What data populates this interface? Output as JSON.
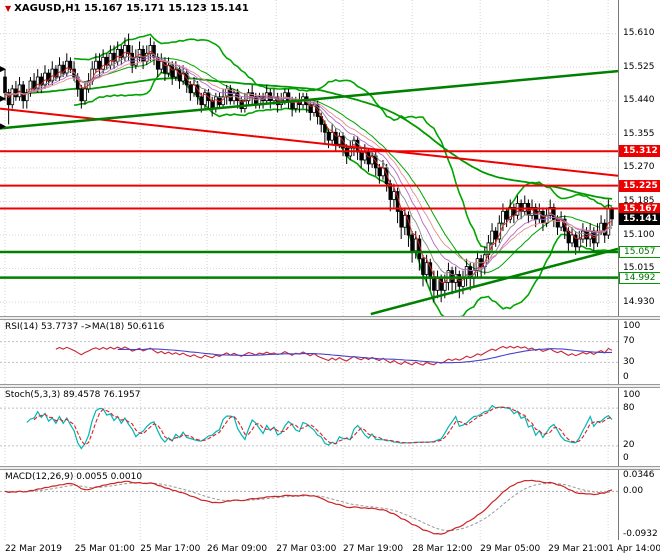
{
  "header": {
    "symbol": "XAGUSD,H1",
    "ohlc": "15.167 15.171 15.123 15.141"
  },
  "colors": {
    "background": "#ffffff",
    "grid": "#d4d4d4",
    "level_line": "#c0c0c0",
    "candle_up_fill": "#ffffff",
    "candle_down_fill": "#000000",
    "candle_border": "#000000",
    "bollinger": "#00a500",
    "ma_slow": "#009900",
    "ema_ribbon": [
      "#dd2222",
      "#888888",
      "#bb66cc",
      "#e09090"
    ],
    "hline_red": "#ee0000",
    "hline_green": "#008000",
    "rsi_line": "#cc2233",
    "rsi_ma": "#4444cc",
    "stoch_k": "#00b5b5",
    "stoch_d": "#dd2222",
    "macd_main": "#cc2222",
    "macd_signal": "#999999"
  },
  "chart_data": {
    "type": "candlestick",
    "symbol": "XAGUSD",
    "timeframe": "H1",
    "current_bar": {
      "open": 15.167,
      "high": 15.171,
      "low": 15.123,
      "close": 15.141
    },
    "price_range": [
      14.895,
      15.695
    ],
    "price_axis": {
      "gridlines": [
        15.61,
        15.525,
        15.44,
        15.355,
        15.27,
        15.185,
        15.1,
        15.015,
        14.93
      ]
    },
    "time_axis": {
      "labels": [
        {
          "t": "22 Mar 2019",
          "x": 0.008
        },
        {
          "t": "25 Mar 01:00",
          "x": 0.121
        },
        {
          "t": "25 Mar 17:00",
          "x": 0.227
        },
        {
          "t": "26 Mar 09:00",
          "x": 0.335
        },
        {
          "t": "27 Mar 03:00",
          "x": 0.447
        },
        {
          "t": "27 Mar 19:00",
          "x": 0.555
        },
        {
          "t": "28 Mar 12:00",
          "x": 0.667
        },
        {
          "t": "29 Mar 05:00",
          "x": 0.777
        },
        {
          "t": "29 Mar 21:00",
          "x": 0.887
        },
        {
          "t": "1 Apr 14:00",
          "x": 0.984
        }
      ]
    },
    "candles": [
      [
        15.5,
        15.52,
        15.44,
        15.46
      ],
      [
        15.46,
        15.47,
        15.38,
        15.43
      ],
      [
        15.43,
        15.48,
        15.42,
        15.47
      ],
      [
        15.47,
        15.49,
        15.44,
        15.45
      ],
      [
        15.45,
        15.5,
        15.44,
        15.48
      ],
      [
        15.48,
        15.49,
        15.42,
        15.44
      ],
      [
        15.44,
        15.47,
        15.42,
        15.46
      ],
      [
        15.46,
        15.5,
        15.45,
        15.49
      ],
      [
        15.49,
        15.51,
        15.46,
        15.47
      ],
      [
        15.47,
        15.52,
        15.46,
        15.5
      ],
      [
        15.5,
        15.51,
        15.46,
        15.48
      ],
      [
        15.48,
        15.53,
        15.47,
        15.51
      ],
      [
        15.51,
        15.52,
        15.48,
        15.49
      ],
      [
        15.49,
        15.54,
        15.48,
        15.52
      ],
      [
        15.52,
        15.53,
        15.49,
        15.5
      ],
      [
        15.5,
        15.55,
        15.49,
        15.53
      ],
      [
        15.53,
        15.54,
        15.5,
        15.51
      ],
      [
        15.51,
        15.56,
        15.5,
        15.54
      ],
      [
        15.54,
        15.55,
        15.51,
        15.52
      ],
      [
        15.52,
        15.54,
        15.49,
        15.5
      ],
      [
        15.5,
        15.51,
        15.45,
        15.47
      ],
      [
        15.47,
        15.48,
        15.42,
        15.44
      ],
      [
        15.44,
        15.49,
        15.43,
        15.47
      ],
      [
        15.47,
        15.51,
        15.46,
        15.49
      ],
      [
        15.49,
        15.54,
        15.48,
        15.52
      ],
      [
        15.52,
        15.56,
        15.51,
        15.54
      ],
      [
        15.54,
        15.56,
        15.5,
        15.52
      ],
      [
        15.52,
        15.57,
        15.51,
        15.55
      ],
      [
        15.55,
        15.56,
        15.52,
        15.53
      ],
      [
        15.53,
        15.58,
        15.52,
        15.56
      ],
      [
        15.56,
        15.58,
        15.52,
        15.54
      ],
      [
        15.54,
        15.59,
        15.53,
        15.57
      ],
      [
        15.57,
        15.58,
        15.53,
        15.55
      ],
      [
        15.55,
        15.6,
        15.54,
        15.58
      ],
      [
        15.58,
        15.61,
        15.54,
        15.56
      ],
      [
        15.56,
        15.58,
        15.51,
        15.53
      ],
      [
        15.53,
        15.57,
        15.52,
        15.55
      ],
      [
        15.55,
        15.59,
        15.54,
        15.57
      ],
      [
        15.57,
        15.58,
        15.52,
        15.54
      ],
      [
        15.54,
        15.58,
        15.53,
        15.56
      ],
      [
        15.56,
        15.6,
        15.54,
        15.58
      ],
      [
        15.58,
        15.59,
        15.53,
        15.55
      ],
      [
        15.55,
        15.56,
        15.5,
        15.52
      ],
      [
        15.52,
        15.56,
        15.51,
        15.54
      ],
      [
        15.54,
        15.55,
        15.49,
        15.51
      ],
      [
        15.51,
        15.55,
        15.5,
        15.53
      ],
      [
        15.53,
        15.54,
        15.48,
        15.5
      ],
      [
        15.5,
        15.54,
        15.49,
        15.52
      ],
      [
        15.52,
        15.53,
        15.47,
        15.49
      ],
      [
        15.49,
        15.53,
        15.48,
        15.51
      ],
      [
        15.51,
        15.52,
        15.46,
        15.48
      ],
      [
        15.48,
        15.49,
        15.44,
        15.46
      ],
      [
        15.46,
        15.5,
        15.45,
        15.48
      ],
      [
        15.48,
        15.49,
        15.43,
        15.45
      ],
      [
        15.45,
        15.46,
        15.41,
        15.43
      ],
      [
        15.43,
        15.47,
        15.42,
        15.46
      ],
      [
        15.46,
        15.47,
        15.42,
        15.44
      ],
      [
        15.44,
        15.45,
        15.4,
        15.42
      ],
      [
        15.42,
        15.46,
        15.41,
        15.45
      ],
      [
        15.45,
        15.46,
        15.42,
        15.43
      ],
      [
        15.43,
        15.47,
        15.42,
        15.45
      ],
      [
        15.45,
        15.48,
        15.43,
        15.47
      ],
      [
        15.47,
        15.48,
        15.43,
        15.44
      ],
      [
        15.44,
        15.47,
        15.43,
        15.46
      ],
      [
        15.46,
        15.47,
        15.42,
        15.44
      ],
      [
        15.44,
        15.45,
        15.41,
        15.42
      ],
      [
        15.42,
        15.46,
        15.41,
        15.44
      ],
      [
        15.44,
        15.47,
        15.43,
        15.46
      ],
      [
        15.46,
        15.48,
        15.43,
        15.45
      ],
      [
        15.45,
        15.46,
        15.42,
        15.43
      ],
      [
        15.43,
        15.46,
        15.42,
        15.45
      ],
      [
        15.45,
        15.46,
        15.42,
        15.44
      ],
      [
        15.44,
        15.48,
        15.43,
        15.46
      ],
      [
        15.46,
        15.47,
        15.42,
        15.44
      ],
      [
        15.44,
        15.47,
        15.43,
        15.45
      ],
      [
        15.45,
        15.46,
        15.41,
        15.43
      ],
      [
        15.43,
        15.46,
        15.42,
        15.44
      ],
      [
        15.44,
        15.47,
        15.43,
        15.46
      ],
      [
        15.46,
        15.47,
        15.42,
        15.44
      ],
      [
        15.44,
        15.45,
        15.4,
        15.42
      ],
      [
        15.42,
        15.45,
        15.41,
        15.44
      ],
      [
        15.44,
        15.46,
        15.41,
        15.43
      ],
      [
        15.43,
        15.46,
        15.42,
        15.45
      ],
      [
        15.45,
        15.46,
        15.41,
        15.43
      ],
      [
        15.43,
        15.44,
        15.39,
        15.41
      ],
      [
        15.41,
        15.44,
        15.4,
        15.43
      ],
      [
        15.43,
        15.44,
        15.38,
        15.4
      ],
      [
        15.4,
        15.41,
        15.36,
        15.38
      ],
      [
        15.38,
        15.39,
        15.33,
        15.36
      ],
      [
        15.36,
        15.37,
        15.32,
        15.34
      ],
      [
        15.34,
        15.38,
        15.33,
        15.36
      ],
      [
        15.36,
        15.37,
        15.31,
        15.33
      ],
      [
        15.33,
        15.36,
        15.32,
        15.35
      ],
      [
        15.35,
        15.36,
        15.3,
        15.32
      ],
      [
        15.32,
        15.33,
        15.28,
        15.3
      ],
      [
        15.3,
        15.34,
        15.29,
        15.32
      ],
      [
        15.32,
        15.35,
        15.3,
        15.34
      ],
      [
        15.34,
        15.35,
        15.29,
        15.31
      ],
      [
        15.31,
        15.32,
        15.27,
        15.29
      ],
      [
        15.29,
        15.33,
        15.28,
        15.31
      ],
      [
        15.31,
        15.32,
        15.26,
        15.28
      ],
      [
        15.28,
        15.31,
        15.27,
        15.3
      ],
      [
        15.3,
        15.31,
        15.25,
        15.27
      ],
      [
        15.27,
        15.28,
        15.23,
        15.25
      ],
      [
        15.25,
        15.29,
        15.24,
        15.27
      ],
      [
        15.27,
        15.28,
        15.21,
        15.23
      ],
      [
        15.23,
        15.24,
        15.16,
        15.19
      ],
      [
        15.19,
        15.23,
        15.17,
        15.21
      ],
      [
        15.21,
        15.22,
        15.13,
        15.16
      ],
      [
        15.16,
        15.17,
        15.09,
        15.12
      ],
      [
        15.12,
        15.17,
        15.1,
        15.15
      ],
      [
        15.15,
        15.16,
        15.07,
        15.1
      ],
      [
        15.1,
        15.11,
        15.03,
        15.06
      ],
      [
        15.06,
        15.11,
        15.04,
        15.09
      ],
      [
        15.09,
        15.1,
        15.01,
        15.04
      ],
      [
        15.04,
        15.05,
        14.97,
        15.0
      ],
      [
        15.0,
        15.05,
        14.98,
        15.03
      ],
      [
        15.03,
        15.04,
        14.96,
        14.99
      ],
      [
        14.99,
        15.01,
        14.93,
        14.96
      ],
      [
        14.96,
        15.01,
        14.94,
        14.99
      ],
      [
        14.99,
        15.0,
        14.93,
        14.96
      ],
      [
        14.96,
        15.0,
        14.94,
        14.98
      ],
      [
        14.98,
        15.03,
        14.96,
        15.01
      ],
      [
        15.01,
        15.02,
        14.95,
        14.98
      ],
      [
        14.98,
        15.02,
        14.96,
        15.0
      ],
      [
        15.0,
        15.01,
        14.94,
        14.97
      ],
      [
        14.97,
        15.01,
        14.95,
        14.99
      ],
      [
        14.99,
        15.04,
        14.97,
        15.02
      ],
      [
        15.02,
        15.03,
        14.96,
        14.99
      ],
      [
        14.99,
        15.03,
        14.97,
        15.01
      ],
      [
        15.01,
        15.06,
        14.99,
        15.04
      ],
      [
        15.04,
        15.05,
        14.99,
        15.02
      ],
      [
        15.02,
        15.07,
        15.0,
        15.05
      ],
      [
        15.05,
        15.1,
        15.03,
        15.08
      ],
      [
        15.08,
        15.13,
        15.06,
        15.11
      ],
      [
        15.11,
        15.12,
        15.07,
        15.09
      ],
      [
        15.09,
        15.15,
        15.08,
        15.13
      ],
      [
        15.13,
        15.18,
        15.11,
        15.16
      ],
      [
        15.16,
        15.17,
        15.12,
        15.14
      ],
      [
        15.14,
        15.19,
        15.13,
        15.17
      ],
      [
        15.17,
        15.18,
        15.13,
        15.15
      ],
      [
        15.15,
        15.2,
        15.14,
        15.18
      ],
      [
        15.18,
        15.19,
        15.14,
        15.16
      ],
      [
        15.16,
        15.2,
        15.15,
        15.18
      ],
      [
        15.18,
        15.19,
        15.13,
        15.15
      ],
      [
        15.15,
        15.19,
        15.14,
        15.17
      ],
      [
        15.17,
        15.18,
        15.12,
        15.14
      ],
      [
        15.14,
        15.18,
        15.13,
        15.16
      ],
      [
        15.16,
        15.17,
        15.11,
        15.13
      ],
      [
        15.13,
        15.17,
        15.12,
        15.15
      ],
      [
        15.15,
        15.19,
        15.14,
        15.17
      ],
      [
        15.17,
        15.18,
        15.12,
        15.14
      ],
      [
        15.14,
        15.15,
        15.1,
        15.12
      ],
      [
        15.12,
        15.16,
        15.11,
        15.14
      ],
      [
        15.14,
        15.15,
        15.09,
        15.11
      ],
      [
        15.11,
        15.12,
        15.06,
        15.08
      ],
      [
        15.08,
        15.12,
        15.07,
        15.1
      ],
      [
        15.1,
        15.11,
        15.05,
        15.07
      ],
      [
        15.07,
        15.11,
        15.06,
        15.09
      ],
      [
        15.09,
        15.13,
        15.08,
        15.11
      ],
      [
        15.11,
        15.12,
        15.07,
        15.09
      ],
      [
        15.09,
        15.13,
        15.07,
        15.11
      ],
      [
        15.11,
        15.12,
        15.06,
        15.08
      ],
      [
        15.08,
        15.13,
        15.07,
        15.11
      ],
      [
        15.11,
        15.15,
        15.1,
        15.13
      ],
      [
        15.13,
        15.14,
        15.08,
        15.1
      ],
      [
        15.1,
        15.19,
        15.09,
        15.167
      ],
      [
        15.167,
        15.171,
        15.123,
        15.141
      ]
    ],
    "overlays": {
      "bollinger": {
        "period": 20,
        "deviation": 2
      },
      "ma_slow": {
        "period": 100
      },
      "ema_ribbon": {
        "periods": [
          4,
          8,
          13,
          18
        ]
      },
      "hlines": [
        {
          "price": 15.312,
          "style": "red",
          "width": 2
        },
        {
          "price": 15.225,
          "style": "red",
          "width": 2
        },
        {
          "price": 15.167,
          "style": "red",
          "width": 2
        },
        {
          "price": 15.057,
          "style": "green",
          "width": 2.5
        },
        {
          "price": 14.992,
          "style": "green",
          "width": 2.5
        }
      ],
      "trendlines": [
        {
          "x1": 0,
          "p1": 15.42,
          "x2": 1.0,
          "p2": 15.25,
          "style": "red",
          "width": 2
        },
        {
          "x1": 0,
          "p1": 15.37,
          "x2": 1.0,
          "p2": 15.515,
          "style": "green",
          "width": 2.5
        },
        {
          "x1": 0.6,
          "p1": 14.9,
          "x2": 1.0,
          "p2": 15.065,
          "style": "green",
          "width": 2.5
        }
      ],
      "left_markers": [
        15.52,
        15.445,
        15.375
      ],
      "current_price": 15.141
    },
    "indicators": [
      {
        "name": "RSI",
        "label": "RSI(14) 53.7737 ->MA(18) 50.6116",
        "period": 14,
        "ma_period": 18,
        "levels": [
          70,
          30
        ],
        "range": [
          -12,
          112
        ],
        "scale": [
          {
            "text": "100",
            "value": 100
          },
          {
            "text": "70",
            "value": 70
          },
          {
            "text": "30",
            "value": 30
          },
          {
            "text": "0",
            "value": 0
          }
        ]
      },
      {
        "name": "Stochastic",
        "label": "Stoch(5,3,3) 89.4578 76.1957",
        "k_period": 5,
        "d_period": 3,
        "slowing": 3,
        "levels": [
          80,
          20
        ],
        "range": [
          -12,
          112
        ],
        "scale": [
          {
            "text": "100",
            "value": 100
          },
          {
            "text": "80",
            "value": 80
          },
          {
            "text": "20",
            "value": 20
          },
          {
            "text": "0",
            "value": 0
          }
        ]
      },
      {
        "name": "MACD",
        "label": "MACD(12,26,9) 0.0055 0.0010",
        "fast": 12,
        "slow": 26,
        "signal": 9,
        "range": [
          -0.105,
          0.046
        ],
        "scale": [
          {
            "text": "0.0346",
            "value": 0.0346
          },
          {
            "text": "0.00",
            "value": 0
          },
          {
            "text": "-0.0932",
            "value": -0.0932
          }
        ]
      }
    ]
  }
}
